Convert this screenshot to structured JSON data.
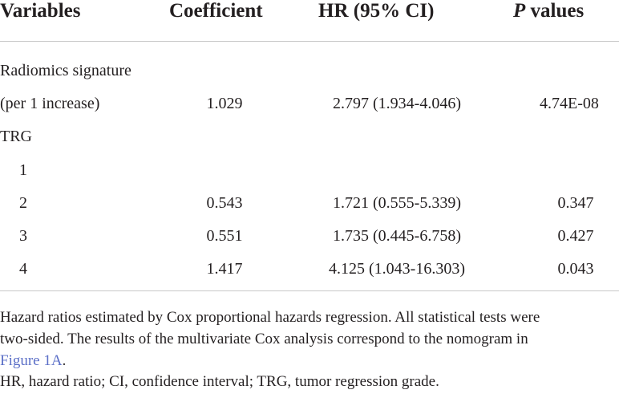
{
  "table": {
    "headers": {
      "variables": "Variables",
      "coefficient": "Coefficient",
      "hr": "HR (95% CI)",
      "p_italic": "P",
      "p_rest": " values"
    },
    "rows": [
      {
        "variable": "Radiomics signature",
        "coefficient": "",
        "hr": "",
        "p": ""
      },
      {
        "variable": "(per 1 increase)",
        "coefficient": "1.029",
        "hr": "2.797 (1.934-4.046)",
        "p": "4.74E-08"
      },
      {
        "variable": "TRG",
        "coefficient": "",
        "hr": "",
        "p": ""
      },
      {
        "variable": "1",
        "coefficient": "",
        "hr": "",
        "p": ""
      },
      {
        "variable": "2",
        "coefficient": "0.543",
        "hr": "1.721 (0.555-5.339)",
        "p": "0.347"
      },
      {
        "variable": "3",
        "coefficient": "0.551",
        "hr": "1.735 (0.445-6.758)",
        "p": "0.427"
      },
      {
        "variable": "4",
        "coefficient": "1.417",
        "hr": "4.125 (1.043-16.303)",
        "p": "0.043"
      }
    ]
  },
  "footnotes": {
    "line1": "Hazard ratios estimated by Cox proportional hazards regression. All statistical tests were",
    "line2": "two-sided. The results of the multivariate Cox analysis correspond to the nomogram in",
    "line3_link": "Figure 1A",
    "line3_rest": ".",
    "line4": "HR, hazard ratio; CI, confidence interval; TRG, tumor regression grade."
  },
  "colors": {
    "text": "#231f20",
    "rule": "#c8c8c8",
    "link": "#5b6fc7"
  }
}
